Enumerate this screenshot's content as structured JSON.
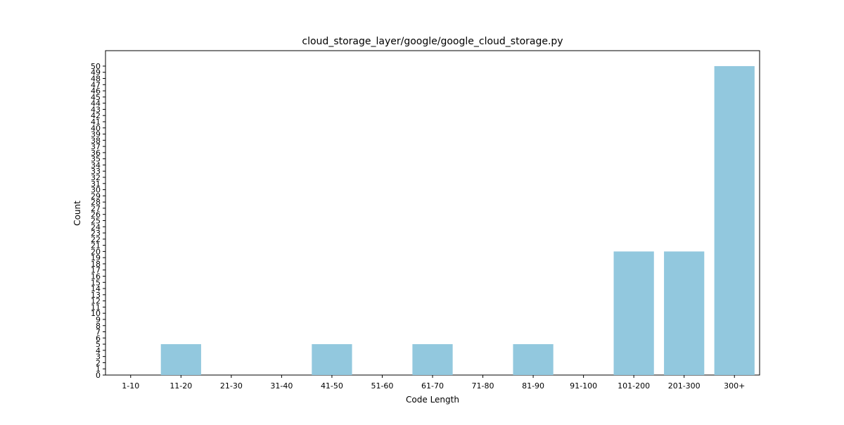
{
  "chart_data": {
    "type": "bar",
    "title": "cloud_storage_layer/google/google_cloud_storage.py",
    "xlabel": "Code Length",
    "ylabel": "Count",
    "categories": [
      "1-10",
      "11-20",
      "21-30",
      "31-40",
      "41-50",
      "51-60",
      "61-70",
      "71-80",
      "81-90",
      "91-100",
      "101-200",
      "201-300",
      "300+"
    ],
    "values": [
      0,
      5,
      0,
      0,
      5,
      0,
      5,
      0,
      5,
      0,
      20,
      20,
      50
    ],
    "ylim": [
      0,
      52.5
    ],
    "yticks": [
      0,
      1,
      2,
      3,
      4,
      5,
      6,
      7,
      8,
      9,
      10,
      11,
      12,
      13,
      14,
      15,
      16,
      17,
      18,
      19,
      20,
      21,
      22,
      23,
      24,
      25,
      26,
      27,
      28,
      29,
      30,
      31,
      32,
      33,
      34,
      35,
      36,
      37,
      38,
      39,
      40,
      41,
      42,
      43,
      44,
      45,
      46,
      47,
      48,
      49,
      50
    ],
    "bar_color": "#92c8de",
    "grid": false,
    "legend": "none"
  }
}
